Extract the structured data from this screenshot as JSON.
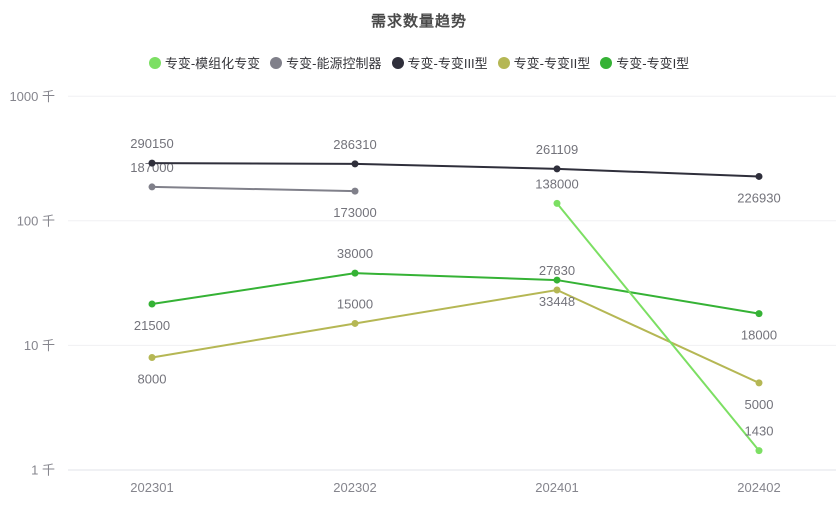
{
  "title": "需求数量趋势",
  "legend": {
    "items": [
      {
        "label": "专变-模组化专变",
        "color": "#7CDF63"
      },
      {
        "label": "专变-能源控制器",
        "color": "#80808A"
      },
      {
        "label": "专变-专变III型",
        "color": "#2F2F3B"
      },
      {
        "label": "专变-专变II型",
        "color": "#B5B754"
      },
      {
        "label": "专变-专变I型",
        "color": "#35B235"
      }
    ]
  },
  "chart_data": {
    "type": "line",
    "title": "需求数量趋势",
    "x_categories": [
      "202301",
      "202302",
      "202401",
      "202402"
    ],
    "y_axis": {
      "scale": "log",
      "unit": "千",
      "tick_labels": [
        "1000 千",
        "100 千",
        "10 千",
        "1 千"
      ],
      "tick_values_thousands": [
        1000,
        100,
        10,
        1
      ],
      "range_thousands": [
        1,
        1000
      ]
    },
    "grid": true,
    "legend_position": "top",
    "series": [
      {
        "name": "专变-模组化专变",
        "color": "#7CDF63",
        "values": [
          null,
          null,
          138000,
          1430
        ],
        "label_positions": [
          null,
          null,
          "top",
          "top"
        ]
      },
      {
        "name": "专变-能源控制器",
        "color": "#80808A",
        "values": [
          187000,
          173000,
          null,
          null
        ],
        "label_positions": [
          "top",
          "bottom",
          null,
          null
        ]
      },
      {
        "name": "专变-专变III型",
        "color": "#2F2F3B",
        "values": [
          290150,
          286310,
          261109,
          226930
        ],
        "label_positions": [
          "top",
          "top",
          "top",
          "bottom"
        ]
      },
      {
        "name": "专变-专变II型",
        "color": "#B5B754",
        "values": [
          8000,
          15000,
          27830,
          5000
        ],
        "label_positions": [
          "bottom",
          "top",
          "top",
          "bottom"
        ]
      },
      {
        "name": "专变-专变I型",
        "color": "#35B235",
        "values": [
          21500,
          38000,
          33448,
          18000
        ],
        "label_positions": [
          "bottom",
          "top",
          "bottom",
          "bottom"
        ]
      }
    ]
  }
}
